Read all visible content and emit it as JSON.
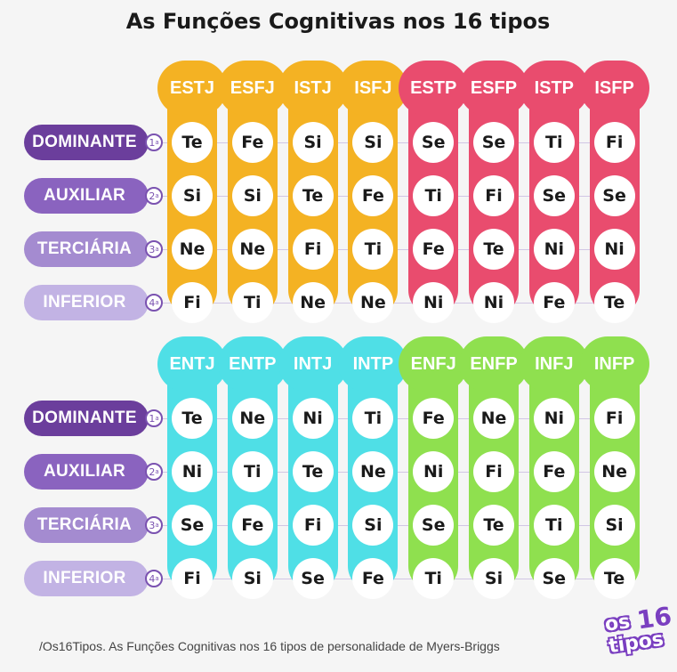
{
  "title": "As Funções Cognitivas nos 16 tipos",
  "row_labels": [
    {
      "label": "DOMINANTE",
      "ordinal": "1",
      "sup": "a",
      "color": "#6b3e9c"
    },
    {
      "label": "AUXILIAR",
      "ordinal": "2",
      "sup": "a",
      "color": "#8a63bf"
    },
    {
      "label": "TERCIÁRIA",
      "ordinal": "3",
      "sup": "a",
      "color": "#a48bd0"
    },
    {
      "label": "INFERIOR",
      "ordinal": "4",
      "sup": "a",
      "color": "#c2b3e4"
    }
  ],
  "groups": [
    {
      "types": [
        {
          "name": "ESTJ",
          "color": "#f4b223",
          "functions": [
            "Te",
            "Si",
            "Ne",
            "Fi"
          ]
        },
        {
          "name": "ESFJ",
          "color": "#f4b223",
          "functions": [
            "Fe",
            "Si",
            "Ne",
            "Ti"
          ]
        },
        {
          "name": "ISTJ",
          "color": "#f4b223",
          "functions": [
            "Si",
            "Te",
            "Fi",
            "Ne"
          ]
        },
        {
          "name": "ISFJ",
          "color": "#f4b223",
          "functions": [
            "Si",
            "Fe",
            "Ti",
            "Ne"
          ]
        },
        {
          "name": "ESTP",
          "color": "#e94c6e",
          "functions": [
            "Se",
            "Ti",
            "Fe",
            "Ni"
          ]
        },
        {
          "name": "ESFP",
          "color": "#e94c6e",
          "functions": [
            "Se",
            "Fi",
            "Te",
            "Ni"
          ]
        },
        {
          "name": "ISTP",
          "color": "#e94c6e",
          "functions": [
            "Ti",
            "Se",
            "Ni",
            "Fe"
          ]
        },
        {
          "name": "ISFP",
          "color": "#e94c6e",
          "functions": [
            "Fi",
            "Se",
            "Ni",
            "Te"
          ]
        }
      ]
    },
    {
      "types": [
        {
          "name": "ENTJ",
          "color": "#4fdfe6",
          "functions": [
            "Te",
            "Ni",
            "Se",
            "Fi"
          ]
        },
        {
          "name": "ENTP",
          "color": "#4fdfe6",
          "functions": [
            "Ne",
            "Ti",
            "Fe",
            "Si"
          ]
        },
        {
          "name": "INTJ",
          "color": "#4fdfe6",
          "functions": [
            "Ni",
            "Te",
            "Fi",
            "Se"
          ]
        },
        {
          "name": "INTP",
          "color": "#4fdfe6",
          "functions": [
            "Ti",
            "Ne",
            "Si",
            "Fe"
          ]
        },
        {
          "name": "ENFJ",
          "color": "#8fe04f",
          "functions": [
            "Fe",
            "Ni",
            "Se",
            "Ti"
          ]
        },
        {
          "name": "ENFP",
          "color": "#8fe04f",
          "functions": [
            "Ne",
            "Fi",
            "Te",
            "Si"
          ]
        },
        {
          "name": "INFJ",
          "color": "#8fe04f",
          "functions": [
            "Ni",
            "Fe",
            "Ti",
            "Se"
          ]
        },
        {
          "name": "INFP",
          "color": "#8fe04f",
          "functions": [
            "Fi",
            "Ne",
            "Si",
            "Te"
          ]
        }
      ]
    }
  ],
  "footer": "/Os16Tipos. As Funções Cognitivas nos 16 tipos de personalidade de Myers-Briggs",
  "logo": {
    "word1": "os",
    "word2": "tipos",
    "number": "16"
  }
}
